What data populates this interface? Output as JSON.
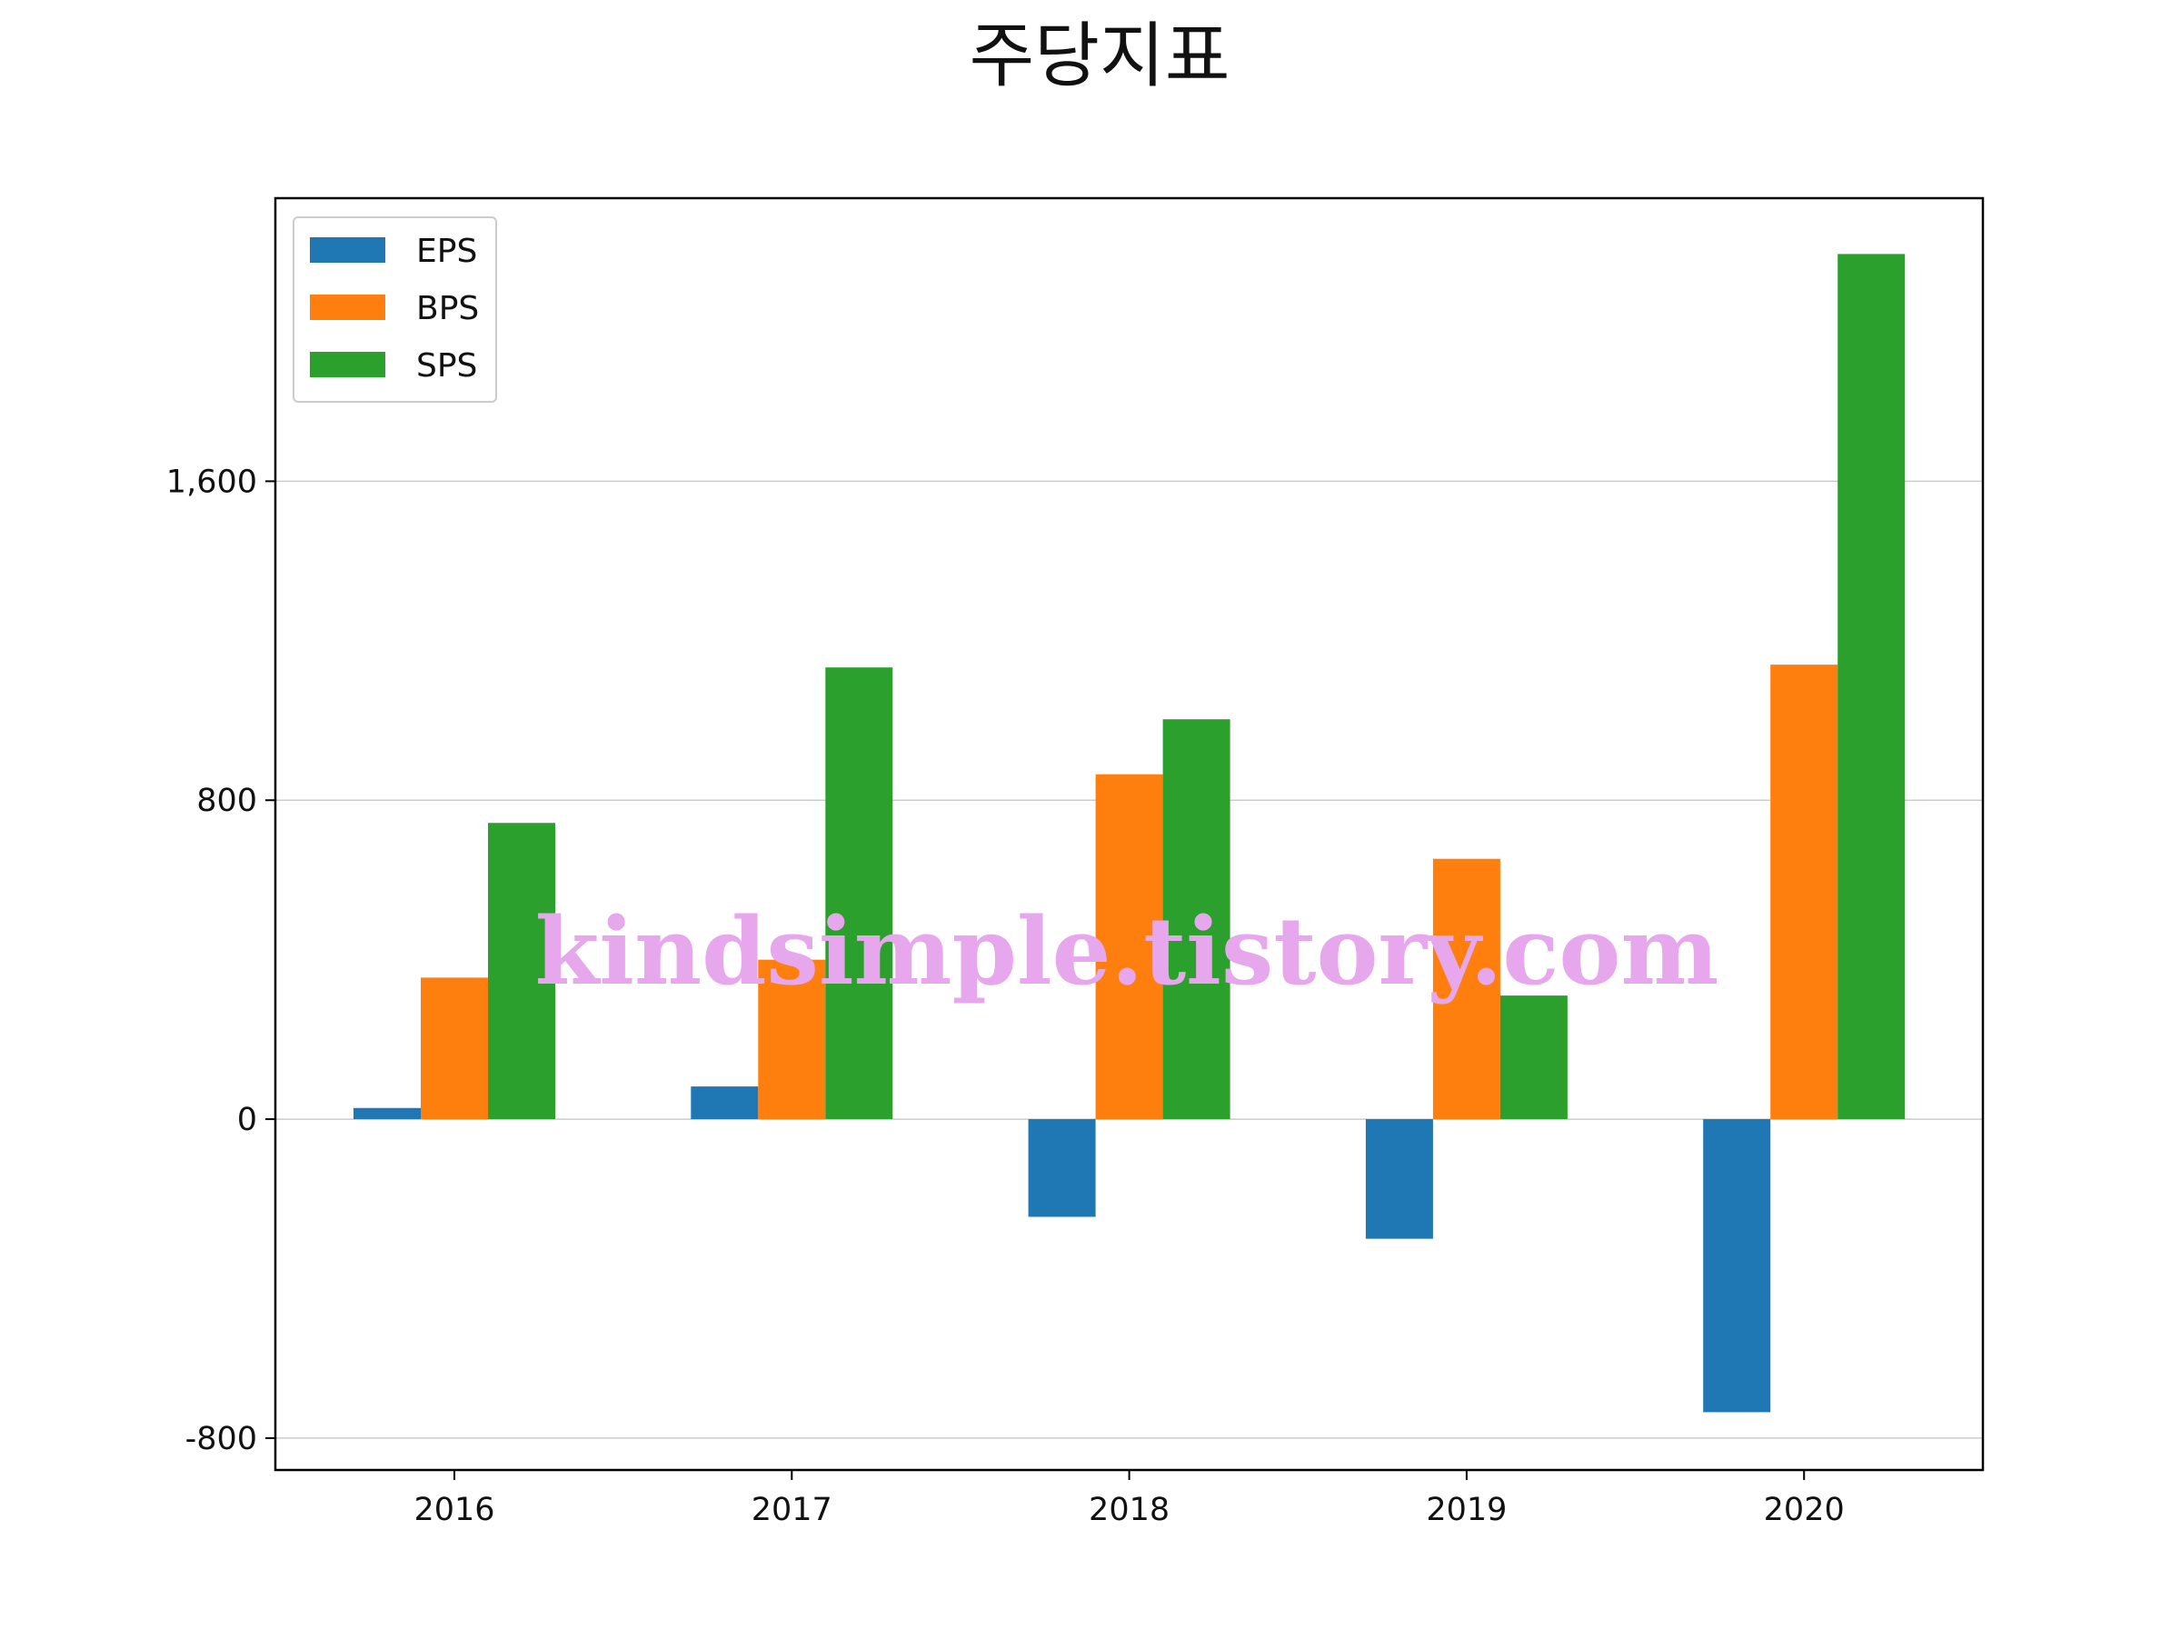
{
  "chart_data": {
    "type": "bar",
    "title": "주당지표",
    "xlabel": "",
    "ylabel": "",
    "categories": [
      "2016",
      "2017",
      "2018",
      "2019",
      "2020"
    ],
    "series": [
      {
        "name": "EPS",
        "color": "#1f77b4",
        "values": [
          28,
          82,
          -245,
          -300,
          -735
        ]
      },
      {
        "name": "BPS",
        "color": "#ff7f0e",
        "values": [
          355,
          400,
          865,
          653,
          1140
        ]
      },
      {
        "name": "SPS",
        "color": "#2ca02c",
        "values": [
          743,
          1133,
          1003,
          310,
          2170
        ]
      }
    ],
    "ylim": [
      -880,
      2310
    ],
    "yticks": [
      -800,
      0,
      800,
      1600
    ],
    "ytick_labels": [
      "-800",
      "0",
      "800",
      "1,600"
    ],
    "grid": "y",
    "legend_position": "upper-left"
  },
  "watermark": {
    "text": "kindsimple.tistory.com"
  }
}
